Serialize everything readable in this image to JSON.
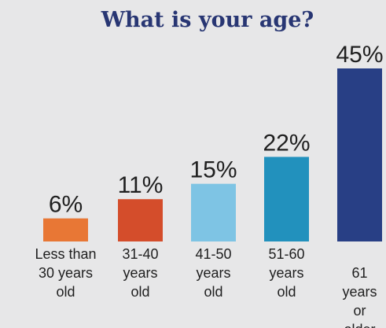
{
  "chart_data": {
    "type": "bar",
    "title": "What is your age?",
    "xlabel": "",
    "ylabel": "",
    "ylim": [
      0,
      45
    ],
    "grid": false,
    "legend": "none",
    "categories": [
      [
        "Less than",
        "30 years",
        "old"
      ],
      [
        "31-40",
        "years",
        "old"
      ],
      [
        "41-50",
        "years",
        "old"
      ],
      [
        "51-60",
        "years",
        "old"
      ],
      [
        "61",
        "years",
        "or",
        "older"
      ]
    ],
    "values": [
      6,
      11,
      15,
      22,
      45
    ],
    "value_labels": [
      "6%",
      "11%",
      "15%",
      "22%",
      "45%"
    ],
    "colors": [
      "#e87735",
      "#d44d2b",
      "#7ec4e4",
      "#2291bd",
      "#283f85"
    ]
  }
}
